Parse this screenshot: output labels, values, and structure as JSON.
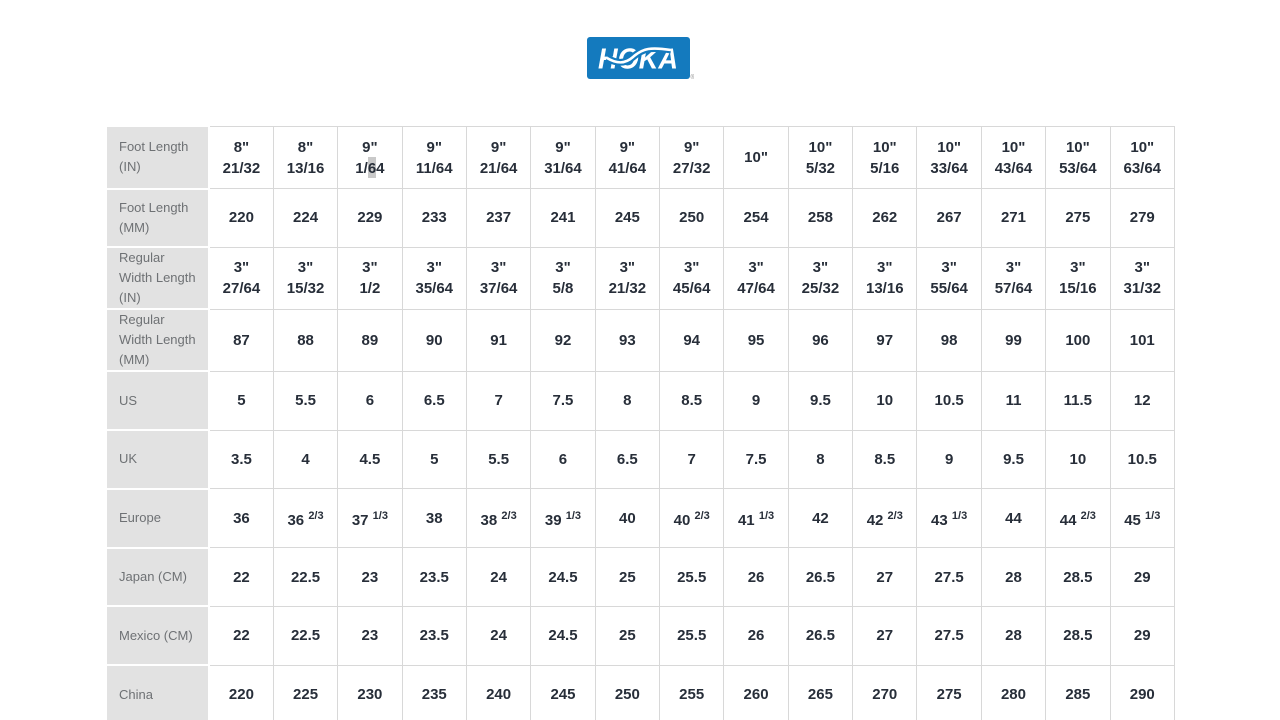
{
  "logo": {
    "text": "HOKA",
    "registered_mark": "®",
    "bg_color": "#147abe",
    "text_color": "#ffffff"
  },
  "colors": {
    "label_cell_bg": "#e2e2e2",
    "label_text": "#6e7174",
    "data_text": "#272e39",
    "cell_border": "#d8d8d8",
    "selection_highlight": "#c9c9c9"
  },
  "table": {
    "column_count": 15,
    "rows": [
      {
        "label": "Foot Length (IN)",
        "cells": [
          [
            {
              "t": "8\""
            },
            {
              "br": 1
            },
            {
              "t": "21/32"
            }
          ],
          [
            {
              "t": "8\""
            },
            {
              "br": 1
            },
            {
              "t": "13/16"
            }
          ],
          [
            {
              "t": "9\""
            },
            {
              "br": 1
            },
            {
              "t": "1/"
            },
            {
              "t": "6",
              "hl": 1
            },
            {
              "t": "4"
            }
          ],
          [
            {
              "t": "9\""
            },
            {
              "br": 1
            },
            {
              "t": "11/64"
            }
          ],
          [
            {
              "t": "9\""
            },
            {
              "br": 1
            },
            {
              "t": "21/64"
            }
          ],
          [
            {
              "t": "9\""
            },
            {
              "br": 1
            },
            {
              "t": "31/64"
            }
          ],
          [
            {
              "t": "9\""
            },
            {
              "br": 1
            },
            {
              "t": "41/64"
            }
          ],
          [
            {
              "t": "9\""
            },
            {
              "br": 1
            },
            {
              "t": "27/32"
            }
          ],
          [
            {
              "t": "10\""
            }
          ],
          [
            {
              "t": "10\""
            },
            {
              "br": 1
            },
            {
              "t": "5/32"
            }
          ],
          [
            {
              "t": "10\""
            },
            {
              "br": 1
            },
            {
              "t": "5/16"
            }
          ],
          [
            {
              "t": "10\""
            },
            {
              "br": 1
            },
            {
              "t": "33/64"
            }
          ],
          [
            {
              "t": "10\""
            },
            {
              "br": 1
            },
            {
              "t": "43/64"
            }
          ],
          [
            {
              "t": "10\""
            },
            {
              "br": 1
            },
            {
              "t": "53/64"
            }
          ],
          [
            {
              "t": "10\""
            },
            {
              "br": 1
            },
            {
              "t": "63/64"
            }
          ]
        ]
      },
      {
        "label": "Foot Length (MM)",
        "cells": [
          "220",
          "224",
          "229",
          "233",
          "237",
          "241",
          "245",
          "250",
          "254",
          "258",
          "262",
          "267",
          "271",
          "275",
          "279"
        ]
      },
      {
        "label": "Regular Width Length (IN)",
        "cells": [
          [
            {
              "t": "3\""
            },
            {
              "br": 1
            },
            {
              "t": "27/64"
            }
          ],
          [
            {
              "t": "3\""
            },
            {
              "br": 1
            },
            {
              "t": "15/32"
            }
          ],
          [
            {
              "t": "3\""
            },
            {
              "br": 1
            },
            {
              "t": "1/2"
            }
          ],
          [
            {
              "t": "3\""
            },
            {
              "br": 1
            },
            {
              "t": "35/64"
            }
          ],
          [
            {
              "t": "3\""
            },
            {
              "br": 1
            },
            {
              "t": "37/64"
            }
          ],
          [
            {
              "t": "3\""
            },
            {
              "br": 1
            },
            {
              "t": "5/8"
            }
          ],
          [
            {
              "t": "3\""
            },
            {
              "br": 1
            },
            {
              "t": "21/32"
            }
          ],
          [
            {
              "t": "3\""
            },
            {
              "br": 1
            },
            {
              "t": "45/64"
            }
          ],
          [
            {
              "t": "3\""
            },
            {
              "br": 1
            },
            {
              "t": "47/64"
            }
          ],
          [
            {
              "t": "3\""
            },
            {
              "br": 1
            },
            {
              "t": "25/32"
            }
          ],
          [
            {
              "t": "3\""
            },
            {
              "br": 1
            },
            {
              "t": "13/16"
            }
          ],
          [
            {
              "t": "3\""
            },
            {
              "br": 1
            },
            {
              "t": "55/64"
            }
          ],
          [
            {
              "t": "3\""
            },
            {
              "br": 1
            },
            {
              "t": "57/64"
            }
          ],
          [
            {
              "t": "3\""
            },
            {
              "br": 1
            },
            {
              "t": "15/16"
            }
          ],
          [
            {
              "t": "3\""
            },
            {
              "br": 1
            },
            {
              "t": "31/32"
            }
          ]
        ]
      },
      {
        "label": "Regular Width Length (MM)",
        "cells": [
          "87",
          "88",
          "89",
          "90",
          "91",
          "92",
          "93",
          "94",
          "95",
          "96",
          "97",
          "98",
          "99",
          "100",
          "101"
        ]
      },
      {
        "label": "US",
        "cells": [
          "5",
          "5.5",
          "6",
          "6.5",
          "7",
          "7.5",
          "8",
          "8.5",
          "9",
          "9.5",
          "10",
          "10.5",
          "11",
          "11.5",
          "12"
        ]
      },
      {
        "label": "UK",
        "cells": [
          "3.5",
          "4",
          "4.5",
          "5",
          "5.5",
          "6",
          "6.5",
          "7",
          "7.5",
          "8",
          "8.5",
          "9",
          "9.5",
          "10",
          "10.5"
        ]
      },
      {
        "label": "Europe",
        "cells": [
          [
            {
              "t": "36"
            }
          ],
          [
            {
              "t": "36 "
            },
            {
              "t": "2/3",
              "sup": 1
            }
          ],
          [
            {
              "t": "37 "
            },
            {
              "t": "1/3",
              "sup": 1
            }
          ],
          [
            {
              "t": "38"
            }
          ],
          [
            {
              "t": "38 "
            },
            {
              "t": "2/3",
              "sup": 1
            }
          ],
          [
            {
              "t": "39 "
            },
            {
              "t": "1/3",
              "sup": 1
            }
          ],
          [
            {
              "t": "40"
            }
          ],
          [
            {
              "t": "40 "
            },
            {
              "t": "2/3",
              "sup": 1
            }
          ],
          [
            {
              "t": "41 "
            },
            {
              "t": "1/3",
              "sup": 1
            }
          ],
          [
            {
              "t": "42"
            }
          ],
          [
            {
              "t": "42 "
            },
            {
              "t": "2/3",
              "sup": 1
            }
          ],
          [
            {
              "t": "43 "
            },
            {
              "t": "1/3",
              "sup": 1
            }
          ],
          [
            {
              "t": "44"
            }
          ],
          [
            {
              "t": "44 "
            },
            {
              "t": "2/3",
              "sup": 1
            }
          ],
          [
            {
              "t": "45 "
            },
            {
              "t": "1/3",
              "sup": 1
            }
          ]
        ]
      },
      {
        "label": "Japan (CM)",
        "cells": [
          "22",
          "22.5",
          "23",
          "23.5",
          "24",
          "24.5",
          "25",
          "25.5",
          "26",
          "26.5",
          "27",
          "27.5",
          "28",
          "28.5",
          "29"
        ]
      },
      {
        "label": "Mexico (CM)",
        "cells": [
          "22",
          "22.5",
          "23",
          "23.5",
          "24",
          "24.5",
          "25",
          "25.5",
          "26",
          "26.5",
          "27",
          "27.5",
          "28",
          "28.5",
          "29"
        ]
      },
      {
        "label": "China",
        "cells": [
          "220",
          "225",
          "230",
          "235",
          "240",
          "245",
          "250",
          "255",
          "260",
          "265",
          "270",
          "275",
          "280",
          "285",
          "290"
        ]
      }
    ]
  }
}
